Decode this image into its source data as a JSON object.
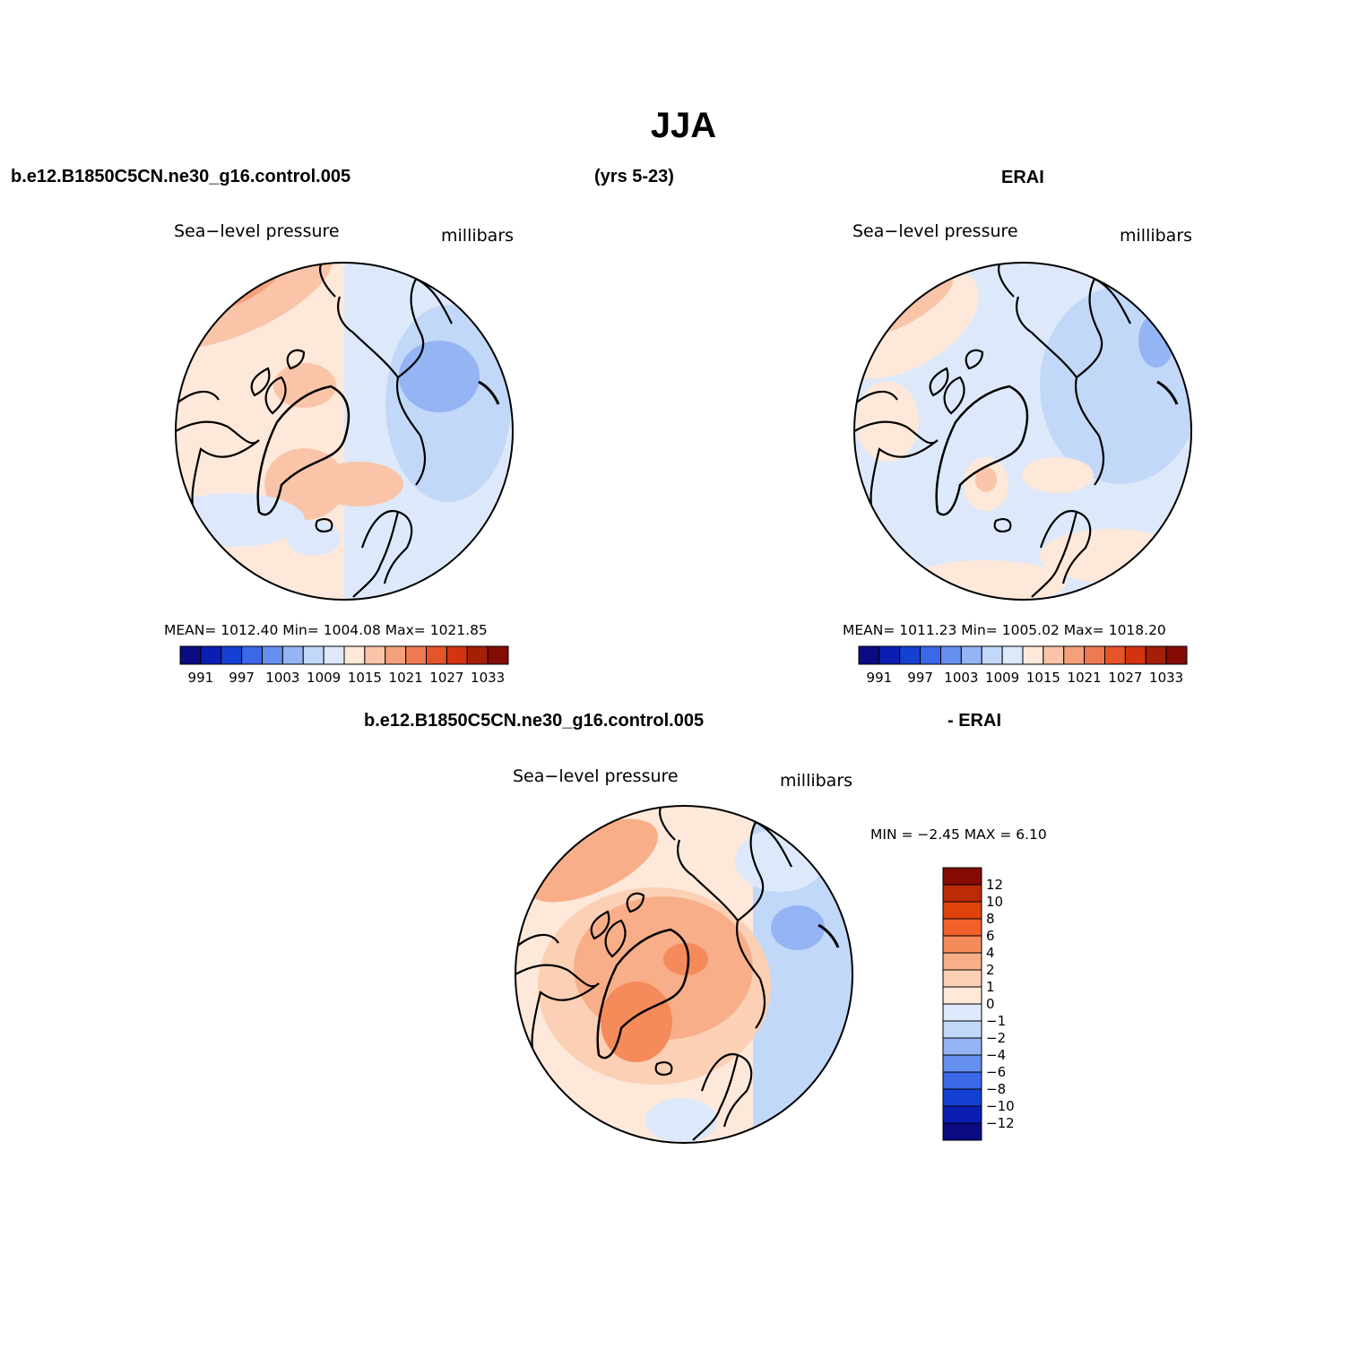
{
  "figure": {
    "title": "JJA",
    "case_name": "b.e12.B1850C5CN.ne30_g16.control.005",
    "years": "(yrs 5-23)",
    "reference_name": "ERAI",
    "diff_case_name": "b.e12.B1850C5CN.ne30_g16.control.005",
    "diff_reference_name": "- ERAI"
  },
  "panels": {
    "case": {
      "variable": "Sea−level pressure",
      "units": "millibars",
      "stats": "MEAN=  1012.40   Min=  1004.08   Max=  1021.85"
    },
    "reference": {
      "variable": "Sea−level pressure",
      "units": "millibars",
      "stats": "MEAN=  1011.23   Min=  1005.02   Max=  1018.20"
    },
    "difference": {
      "variable": "Sea−level pressure",
      "units": "millibars",
      "stats": "MIN =   −2.45  MAX =     6.10"
    }
  },
  "colorbars": {
    "absolute": {
      "labels": [
        "991",
        "997",
        "1003",
        "1009",
        "1015",
        "1021",
        "1027",
        "1033"
      ],
      "colors": [
        "#0a0a82",
        "#0a1eb4",
        "#1441d2",
        "#3a68e8",
        "#6690f0",
        "#94b4f4",
        "#c2d8f8",
        "#dde9fa",
        "#fde8da",
        "#f9c4a8",
        "#f4a07a",
        "#ee7a52",
        "#e6542a",
        "#d23410",
        "#a41e08",
        "#840c04"
      ]
    },
    "difference": {
      "labels": [
        "12",
        "10",
        "8",
        "6",
        "4",
        "2",
        "1",
        "0",
        "−1",
        "−2",
        "−4",
        "−6",
        "−8",
        "−10",
        "−12"
      ],
      "colors": [
        "#840c04",
        "#bc2a08",
        "#e0420c",
        "#f2602a",
        "#f58a5a",
        "#f8ae88",
        "#fbd0b4",
        "#fde8da",
        "#dde9fa",
        "#c2d8f8",
        "#94b4f4",
        "#6690f0",
        "#3a68e8",
        "#1441d2",
        "#0a1eb4",
        "#0a0a82"
      ]
    }
  },
  "map_colors": {
    "land_outline": "#000000",
    "frame": "#000000"
  }
}
